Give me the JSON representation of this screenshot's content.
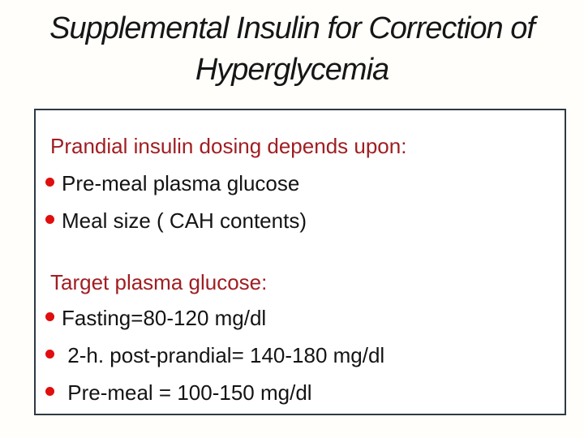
{
  "slide": {
    "title": {
      "line1": "Supplemental Insulin for Correction of",
      "line2": "Hyperglycemia"
    },
    "content_box": {
      "section1": {
        "heading": "Prandial insulin dosing depends upon:",
        "bullets": [
          "Pre-meal plasma glucose",
          "Meal size ( CAH contents)"
        ]
      },
      "section2": {
        "heading": "Target plasma glucose:",
        "bullets": [
          "Fasting=80-120 mg/dl",
          " 2-h. post-prandial= 140-180 mg/dl",
          " Pre-meal = 100-150 mg/dl"
        ]
      }
    },
    "colors": {
      "title_text": "#161616",
      "heading_red": "#a01e22",
      "bullet_red": "#e00e0e",
      "body_text": "#141414",
      "box_border": "#2e3a42",
      "background": "#fffefb"
    }
  }
}
